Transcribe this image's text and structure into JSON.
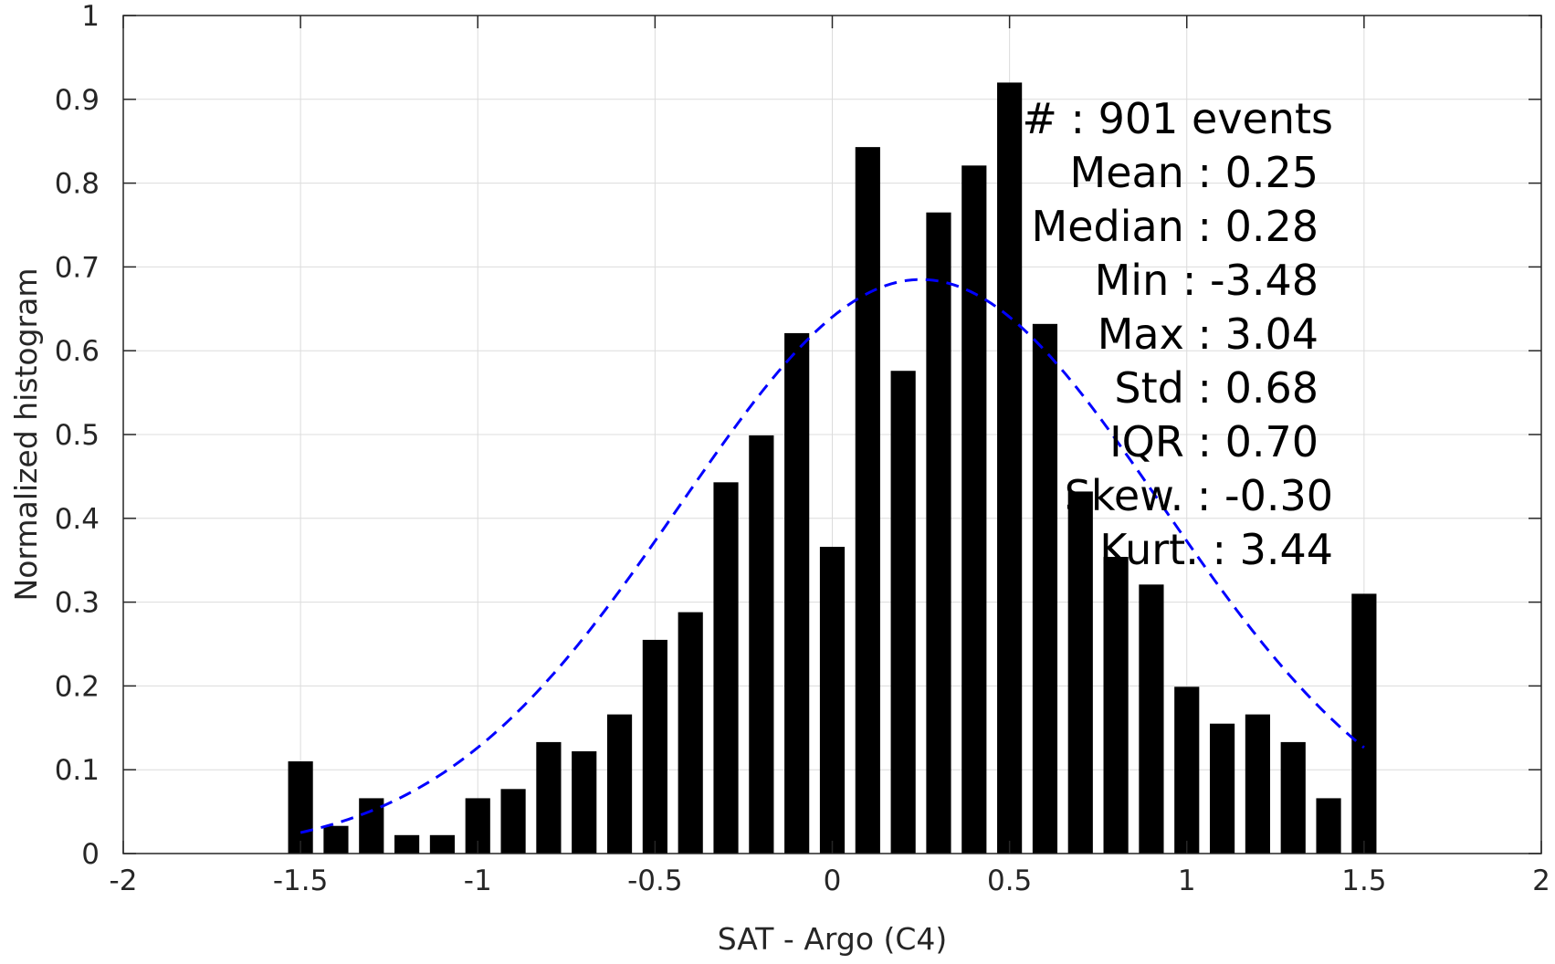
{
  "chart_data": {
    "type": "bar",
    "title": "",
    "xlabel": "SAT - Argo (C4)",
    "ylabel": "Normalized histogram",
    "xlim": [
      -2,
      2
    ],
    "ylim": [
      0,
      1
    ],
    "grid": true,
    "x_ticks": [
      "-2",
      "-1.5",
      "-1",
      "-0.5",
      "0",
      "0.5",
      "1",
      "1.5",
      "2"
    ],
    "y_ticks": [
      "0",
      "0.1",
      "0.2",
      "0.3",
      "0.4",
      "0.5",
      "0.6",
      "0.7",
      "0.8",
      "0.9",
      "1"
    ],
    "bar_width": 0.07,
    "x": [
      -1.5,
      -1.4,
      -1.3,
      -1.2,
      -1.1,
      -1.0,
      -0.9,
      -0.8,
      -0.7,
      -0.6,
      -0.5,
      -0.4,
      -0.3,
      -0.2,
      -0.1,
      0.0,
      0.1,
      0.2,
      0.3,
      0.4,
      0.5,
      0.6,
      0.7,
      0.8,
      0.9,
      1.0,
      1.1,
      1.2,
      1.3,
      1.4,
      1.5
    ],
    "values": [
      0.11,
      0.033,
      0.066,
      0.022,
      0.022,
      0.066,
      0.077,
      0.133,
      0.122,
      0.166,
      0.255,
      0.288,
      0.443,
      0.499,
      0.621,
      0.366,
      0.843,
      0.576,
      0.765,
      0.821,
      0.92,
      0.632,
      0.432,
      0.354,
      0.321,
      0.199,
      0.155,
      0.166,
      0.133,
      0.066,
      0.31
    ],
    "bar_color": "#000000",
    "fit_curve": {
      "style": "dashed",
      "color": "#0000ff",
      "mean": 0.25,
      "std": 0.68,
      "peak": 0.685,
      "x_range": [
        -1.5,
        1.5
      ]
    },
    "stats": [
      "#  : 901 events",
      "Mean : 0.25",
      "Median : 0.28",
      "Min : -3.48",
      "Max : 3.04",
      "Std : 0.68",
      "IQR : 0.70",
      "Skew. : -0.30",
      "Kurt. : 3.44"
    ]
  }
}
